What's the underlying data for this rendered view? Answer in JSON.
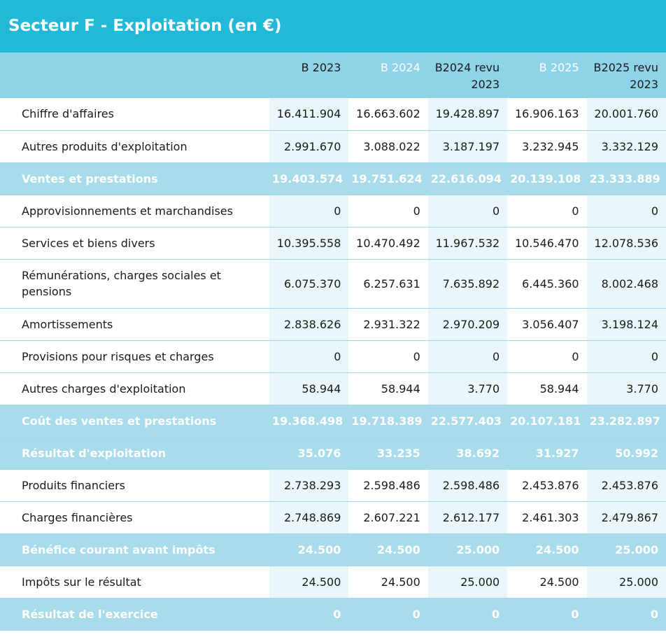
{
  "header": {
    "title": "Secteur F - Exploitation (en €)"
  },
  "table": {
    "columns": [
      "B 2023",
      "B 2024",
      "B2024 revu 2023",
      "B 2025",
      "B2025 revu 2023"
    ],
    "column_emphasis": [
      true,
      false,
      true,
      false,
      true
    ],
    "rows": [
      {
        "label": "Chiffre d'affaires",
        "highlight": false,
        "values": [
          "16.411.904",
          "16.663.602",
          "19.428.897",
          "16.906.163",
          "20.001.760"
        ]
      },
      {
        "label": "Autres produits d'exploitation",
        "highlight": false,
        "values": [
          "2.991.670",
          "3.088.022",
          "3.187.197",
          "3.232.945",
          "3.332.129"
        ]
      },
      {
        "label": "Ventes et prestations",
        "highlight": true,
        "values": [
          "19.403.574",
          "19.751.624",
          "22.616.094",
          "20.139.108",
          "23.333.889"
        ]
      },
      {
        "label": "Approvisionnements et marchandises",
        "highlight": false,
        "values": [
          "0",
          "0",
          "0",
          "0",
          "0"
        ]
      },
      {
        "label": "Services et biens divers",
        "highlight": false,
        "values": [
          "10.395.558",
          "10.470.492",
          "11.967.532",
          "10.546.470",
          "12.078.536"
        ]
      },
      {
        "label": "Rémunérations, charges sociales et pensions",
        "highlight": false,
        "values": [
          "6.075.370",
          "6.257.631",
          "7.635.892",
          "6.445.360",
          "8.002.468"
        ]
      },
      {
        "label": "Amortissements",
        "highlight": false,
        "values": [
          "2.838.626",
          "2.931.322",
          "2.970.209",
          "3.056.407",
          "3.198.124"
        ]
      },
      {
        "label": "Provisions pour risques et charges",
        "highlight": false,
        "values": [
          "0",
          "0",
          "0",
          "0",
          "0"
        ]
      },
      {
        "label": "Autres charges d'exploitation",
        "highlight": false,
        "values": [
          "58.944",
          "58.944",
          "3.770",
          "58.944",
          "3.770"
        ]
      },
      {
        "label": "Coût des ventes et prestations",
        "highlight": true,
        "values": [
          "19.368.498",
          "19.718.389",
          "22.577.403",
          "20.107.181",
          "23.282.897"
        ]
      },
      {
        "label": "Résultat d'exploitation",
        "highlight": true,
        "values": [
          "35.076",
          "33.235",
          "38.692",
          "31.927",
          "50.992"
        ]
      },
      {
        "label": "Produits financiers",
        "highlight": false,
        "values": [
          "2.738.293",
          "2.598.486",
          "2.598.486",
          "2.453.876",
          "2.453.876"
        ]
      },
      {
        "label": "Charges financières",
        "highlight": false,
        "values": [
          "2.748.869",
          "2.607.221",
          "2.612.177",
          "2.461.303",
          "2.479.867"
        ]
      },
      {
        "label": "Bénéfice courant avant impôts",
        "highlight": true,
        "values": [
          "24.500",
          "24.500",
          "25.000",
          "24.500",
          "25.000"
        ]
      },
      {
        "label": "Impôts sur le résultat",
        "highlight": false,
        "values": [
          "24.500",
          "24.500",
          "25.000",
          "24.500",
          "25.000"
        ]
      },
      {
        "label": "Résultat de l'exercice",
        "highlight": true,
        "values": [
          "0",
          "0",
          "0",
          "0",
          "0"
        ]
      }
    ]
  }
}
